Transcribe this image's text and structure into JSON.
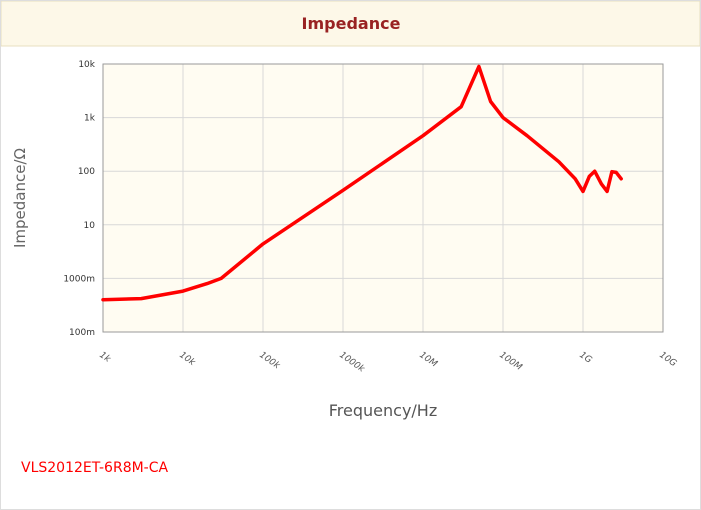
{
  "chart_data": {
    "type": "line",
    "title": "Impedance",
    "x_label": "Frequency/Hz",
    "y_label": "Impedance/Ω",
    "log_x": true,
    "log_y": true,
    "grid": true,
    "xlim": [
      1000,
      10000000000
    ],
    "ylim": [
      0.1,
      10000
    ],
    "xticks": [
      {
        "value": 1000,
        "label": "1k"
      },
      {
        "value": 10000,
        "label": "10k"
      },
      {
        "value": 100000,
        "label": "100k"
      },
      {
        "value": 1000000,
        "label": "1000k"
      },
      {
        "value": 10000000,
        "label": "10M"
      },
      {
        "value": 100000000,
        "label": "100M"
      },
      {
        "value": 1000000000,
        "label": "1G"
      },
      {
        "value": 10000000000,
        "label": "10G"
      }
    ],
    "yticks": [
      {
        "value": 0.1,
        "label": "100m"
      },
      {
        "value": 1,
        "label": "1000m"
      },
      10,
      100,
      {
        "value": 1000,
        "label": "1k"
      },
      {
        "value": 10000,
        "label": "10k"
      }
    ],
    "x": [
      1000,
      3000,
      10000,
      20000,
      30000,
      100000,
      1000000,
      10000000,
      30000000,
      50000000,
      70000000,
      100000000,
      200000000,
      500000000,
      800000000,
      1000000000,
      1200000000,
      1400000000,
      1700000000,
      2000000000,
      2300000000,
      2600000000,
      3000000000
    ],
    "series": [
      {
        "name": "VLS2012ET-6R8M-CA",
        "color": "#ff0000",
        "values": [
          0.4,
          0.42,
          0.58,
          0.8,
          1.0,
          4.4,
          44,
          460,
          1600,
          9000,
          2000,
          1000,
          460,
          150,
          72,
          42,
          80,
          100,
          58,
          42,
          98,
          95,
          72
        ]
      }
    ]
  }
}
